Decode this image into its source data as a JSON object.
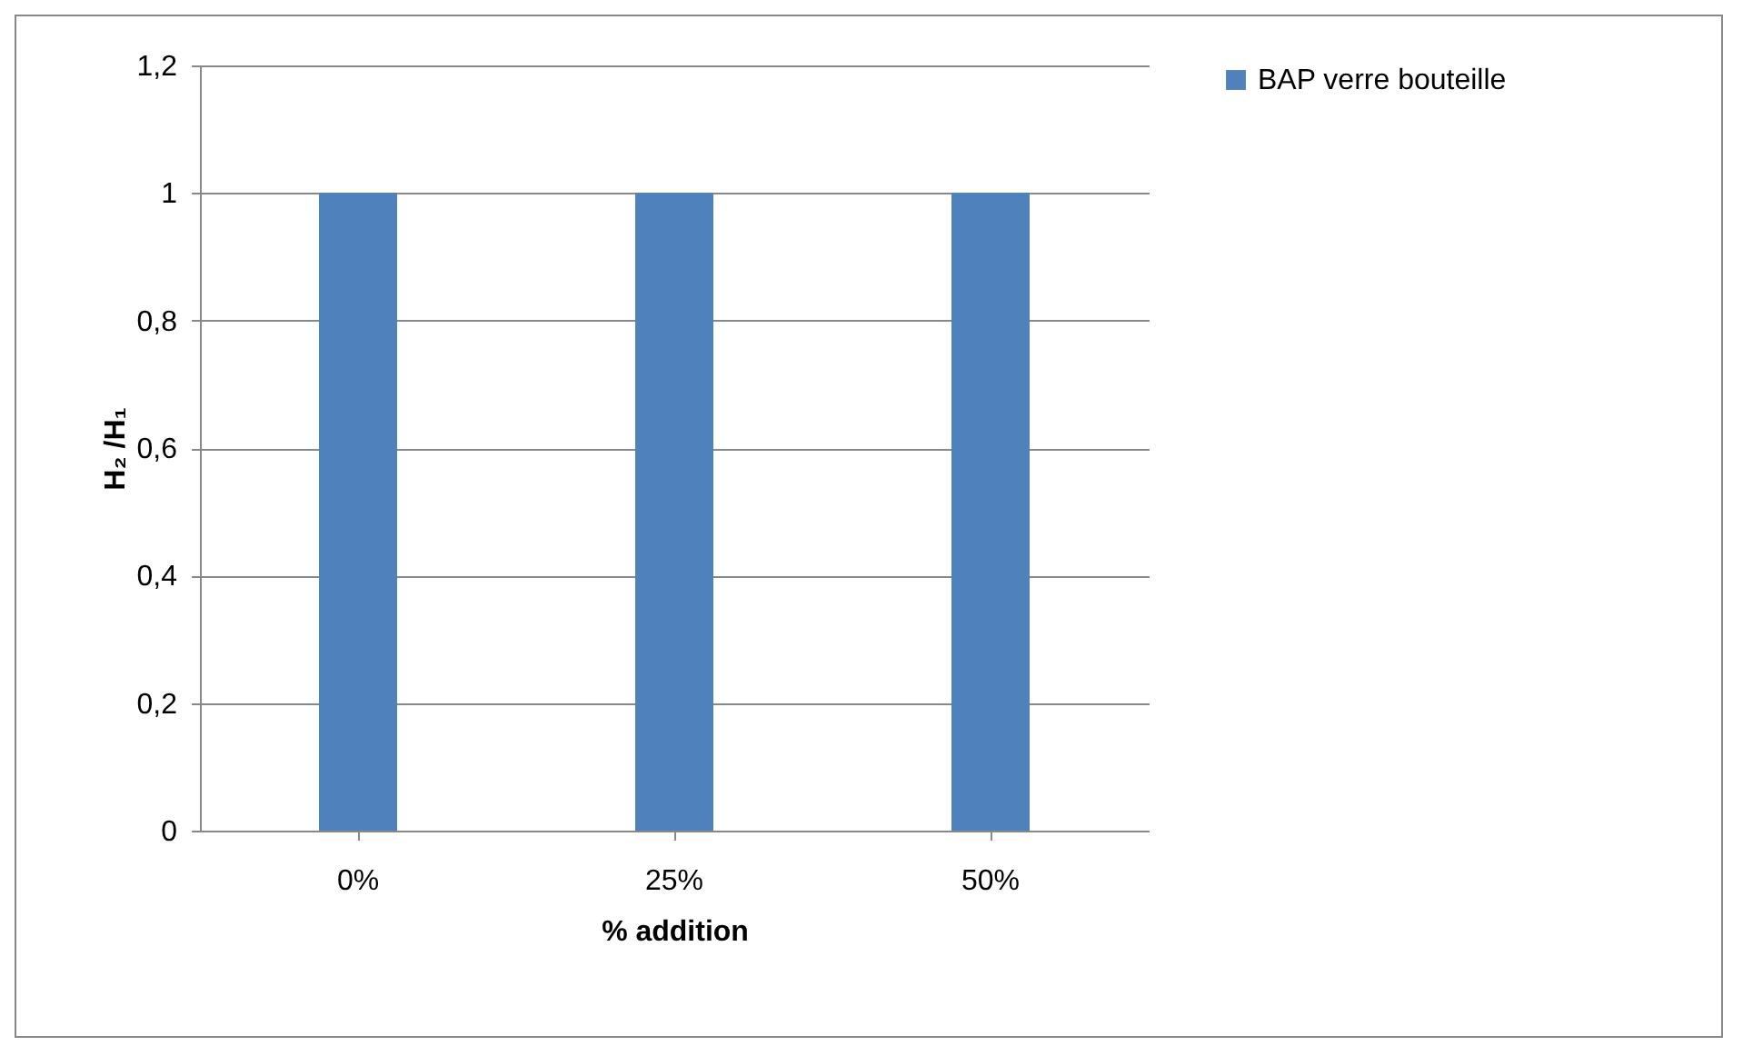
{
  "chart_data": {
    "type": "bar",
    "xlabel": "% addition",
    "ylabel": "H₂ /H₁",
    "categories": [
      "0%",
      "25%",
      "50%"
    ],
    "series": [
      {
        "name": "BAP verre bouteille",
        "color": "#4f81bd",
        "values": [
          1,
          1,
          1
        ]
      }
    ],
    "ylim": [
      0,
      1.2
    ],
    "yticks": [
      0,
      {
        "value": 0.2,
        "label": "0,2"
      },
      {
        "value": 0.4,
        "label": "0,4"
      },
      {
        "value": 0.6,
        "label": "0,6"
      },
      {
        "value": 0.8,
        "label": "0,8"
      },
      1,
      {
        "value": 1.2,
        "label": "1,2"
      }
    ],
    "grid": "y",
    "legend": "right"
  }
}
